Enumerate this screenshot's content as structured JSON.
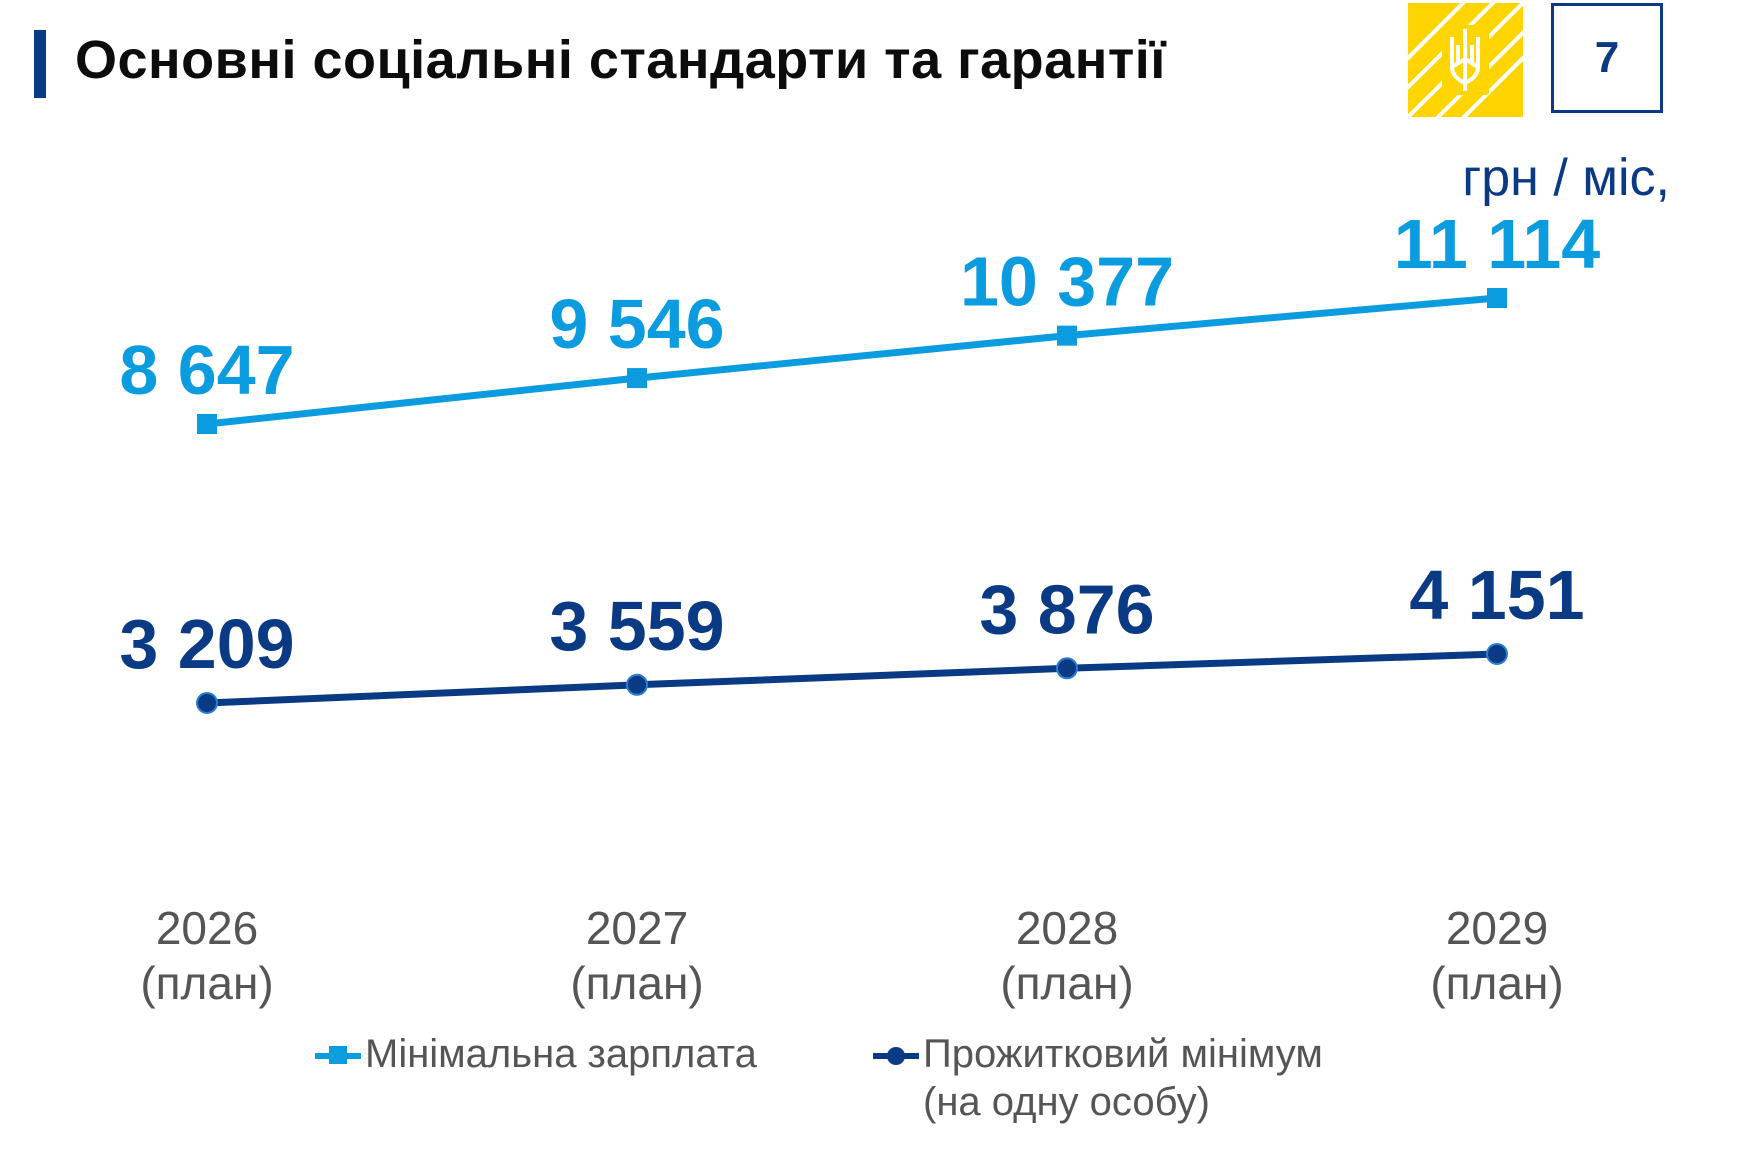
{
  "header": {
    "title": "Основні соціальні стандарти та гарантії",
    "page_number": "7"
  },
  "colors": {
    "accent_dark": "#0b3a85",
    "accent_light": "#0a9cde",
    "emblem_yellow": "#ffd500"
  },
  "icons": {
    "emblem": "coat-of-arms-icon"
  },
  "chart_data": {
    "type": "line",
    "unit_label": "грн / міс,",
    "categories": [
      {
        "year": "2026",
        "note": "(план)"
      },
      {
        "year": "2027",
        "note": "(план)"
      },
      {
        "year": "2028",
        "note": "(план)"
      },
      {
        "year": "2029",
        "note": "(план)"
      }
    ],
    "series": [
      {
        "name": "Мінімальна зарплата",
        "marker": "square",
        "color": "#0a9cde",
        "values": [
          8647,
          9546,
          10377,
          11114
        ],
        "labels": [
          "8 647",
          "9 546",
          "10 377",
          "11 114"
        ]
      },
      {
        "name": "Прожитковий мінімум",
        "name_line2": "(на одну особу)",
        "marker": "circle",
        "color": "#0b3a85",
        "values": [
          3209,
          3559,
          3876,
          4151
        ],
        "labels": [
          "3 209",
          "3 559",
          "3 876",
          "4 151"
        ]
      }
    ],
    "legend_position": "bottom",
    "grid": false
  }
}
